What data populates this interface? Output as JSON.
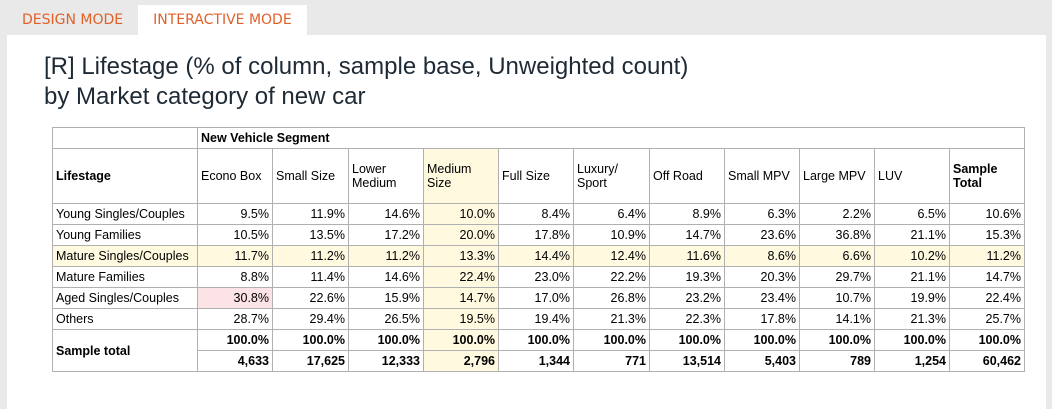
{
  "tabs": [
    {
      "label": "DESIGN MODE",
      "active": false
    },
    {
      "label": "INTERACTIVE MODE",
      "active": true
    }
  ],
  "title_line1": "[R] Lifestage (% of column, sample base, Unweighted count)",
  "title_line2": "by Market category of new car",
  "table": {
    "group_header": "New Vehicle Segment",
    "row_header": "Lifestage",
    "columns": [
      "Econo Box",
      "Small Size",
      "Lower Medium",
      "Medium Size",
      "Full Size",
      "Luxury/ Sport",
      "Off Road",
      "Small MPV",
      "Large MPV",
      "LUV",
      "Sample Total"
    ],
    "rows": [
      {
        "label": "Young Singles/Couples",
        "values": [
          "9.5%",
          "11.9%",
          "14.6%",
          "10.0%",
          "8.4%",
          "6.4%",
          "8.9%",
          "6.3%",
          "2.2%",
          "6.5%",
          "10.6%"
        ]
      },
      {
        "label": "Young Families",
        "values": [
          "10.5%",
          "13.5%",
          "17.2%",
          "20.0%",
          "17.8%",
          "10.9%",
          "14.7%",
          "23.6%",
          "36.8%",
          "21.1%",
          "15.3%"
        ]
      },
      {
        "label": "Mature Singles/Couples",
        "values": [
          "11.7%",
          "11.2%",
          "11.2%",
          "13.3%",
          "14.4%",
          "12.4%",
          "11.6%",
          "8.6%",
          "6.6%",
          "10.2%",
          "11.2%"
        ]
      },
      {
        "label": "Mature Families",
        "values": [
          "8.8%",
          "11.4%",
          "14.6%",
          "22.4%",
          "23.0%",
          "22.2%",
          "19.3%",
          "20.3%",
          "29.7%",
          "21.1%",
          "14.7%"
        ]
      },
      {
        "label": "Aged Singles/Couples",
        "values": [
          "30.8%",
          "22.6%",
          "15.9%",
          "14.7%",
          "17.0%",
          "26.8%",
          "23.2%",
          "23.4%",
          "10.7%",
          "19.9%",
          "22.4%"
        ]
      },
      {
        "label": "Others",
        "values": [
          "28.7%",
          "29.4%",
          "26.5%",
          "19.5%",
          "19.4%",
          "21.3%",
          "22.3%",
          "17.8%",
          "14.1%",
          "21.3%",
          "25.7%"
        ]
      }
    ],
    "total_label": "Sample total",
    "total_percent": [
      "100.0%",
      "100.0%",
      "100.0%",
      "100.0%",
      "100.0%",
      "100.0%",
      "100.0%",
      "100.0%",
      "100.0%",
      "100.0%",
      "100.0%"
    ],
    "total_counts": [
      "4,633",
      "17,625",
      "12,333",
      "2,796",
      "1,344",
      "771",
      "13,514",
      "5,403",
      "789",
      "1,254",
      "60,462"
    ]
  },
  "colors": {
    "tab_text": "#e0602a",
    "highlight": "#fff9e0",
    "pink": "#fbe3e6"
  }
}
